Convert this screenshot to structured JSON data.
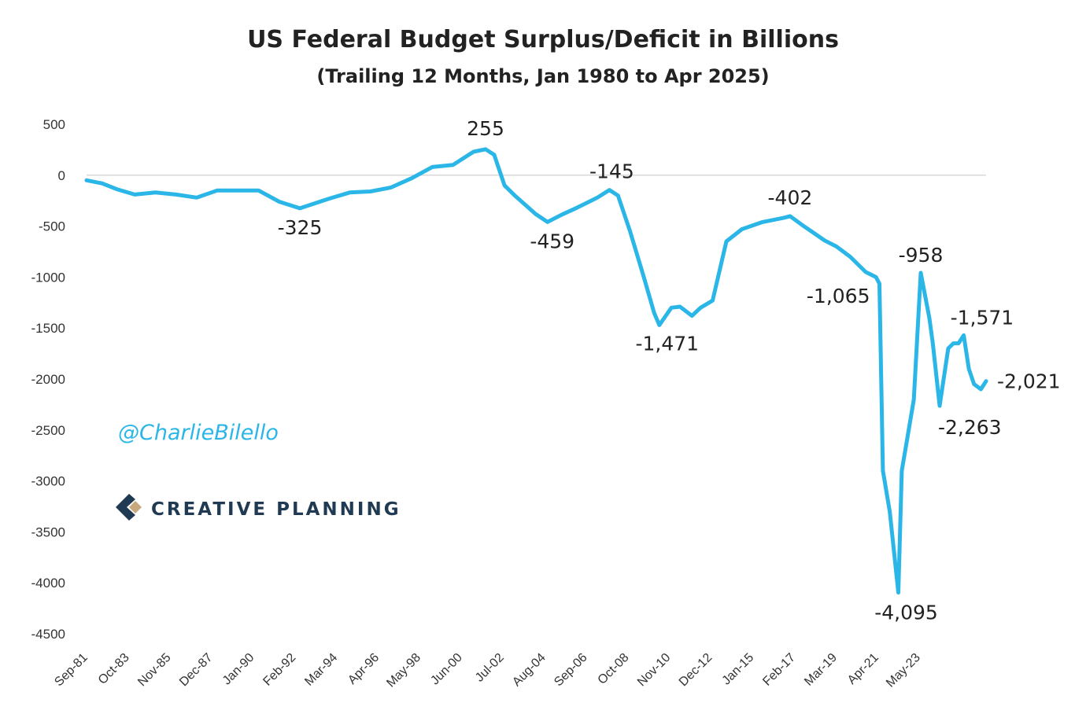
{
  "chart_data": {
    "type": "line",
    "title": "US Federal Budget Surplus/Deficit in Billions",
    "subtitle": "(Trailing 12 Months, Jan 1980 to Apr 2025)",
    "xlabel": "",
    "ylabel": "",
    "ylim": [
      -4500,
      500
    ],
    "yticks": [
      "500",
      "0",
      "-500",
      "-1000",
      "-1500",
      "-2000",
      "-2500",
      "-3000",
      "-3500",
      "-4000",
      "-4500"
    ],
    "xlim": [
      "1981-09",
      "2025-04"
    ],
    "xticks": [
      "Sep-81",
      "Oct-83",
      "Nov-85",
      "Dec-87",
      "Jan-90",
      "Feb-92",
      "Mar-94",
      "Apr-96",
      "May-98",
      "Jun-00",
      "Jul-02",
      "Aug-04",
      "Sep-06",
      "Oct-08",
      "Nov-10",
      "Dec-12",
      "Jan-15",
      "Feb-17",
      "Mar-19",
      "Apr-21",
      "May-23"
    ],
    "grid": false,
    "line_color": "#2bb6e8",
    "series": [
      {
        "x": [
          "1981-09",
          "1982-06",
          "1983-03",
          "1984-01",
          "1985-01",
          "1986-01",
          "1987-01",
          "1988-01",
          "1989-01",
          "1990-01",
          "1991-01",
          "1992-01",
          "1992-09",
          "1993-06",
          "1994-06",
          "1995-06",
          "1996-06",
          "1997-06",
          "1998-06",
          "1999-06",
          "2000-06",
          "2001-01",
          "2001-06",
          "2001-12",
          "2002-06",
          "2003-06",
          "2004-01",
          "2004-09",
          "2005-06",
          "2006-06",
          "2007-01",
          "2007-06",
          "2008-01",
          "2008-09",
          "2009-03",
          "2009-06",
          "2010-01",
          "2010-06",
          "2011-01",
          "2011-06",
          "2012-01",
          "2012-09",
          "2013-06",
          "2014-06",
          "2015-06",
          "2015-10",
          "2016-06",
          "2017-01",
          "2017-06",
          "2018-01",
          "2018-09",
          "2019-06",
          "2019-12",
          "2020-02",
          "2020-04",
          "2020-08",
          "2021-01",
          "2021-03",
          "2021-06",
          "2021-10",
          "2022-02",
          "2022-07",
          "2022-09",
          "2023-01",
          "2023-06",
          "2023-09",
          "2023-12",
          "2024-03",
          "2024-06",
          "2024-09",
          "2025-01",
          "2025-04"
        ],
        "values": [
          -50,
          -80,
          -140,
          -190,
          -170,
          -190,
          -220,
          -150,
          -150,
          -150,
          -260,
          -325,
          -280,
          -230,
          -170,
          -160,
          -120,
          -30,
          80,
          100,
          230,
          255,
          200,
          -100,
          -200,
          -380,
          -459,
          -390,
          -320,
          -220,
          -145,
          -200,
          -550,
          -1000,
          -1350,
          -1471,
          -1300,
          -1290,
          -1380,
          -1300,
          -1230,
          -650,
          -530,
          -460,
          -420,
          -402,
          -500,
          -580,
          -640,
          -700,
          -800,
          -950,
          -1000,
          -1065,
          -2900,
          -3300,
          -4095,
          -2900,
          -2600,
          -2200,
          -958,
          -1400,
          -1650,
          -2263,
          -1700,
          -1650,
          -1650,
          -1571,
          -1900,
          -2050,
          -2100,
          -2021
        ]
      }
    ],
    "annotations": [
      {
        "label": "255",
        "x": "2001-01",
        "value": 255
      },
      {
        "label": "-325",
        "x": "1992-01",
        "value": -325
      },
      {
        "label": "-459",
        "x": "2004-01",
        "value": -459
      },
      {
        "label": "-145",
        "x": "2007-01",
        "value": -145
      },
      {
        "label": "-1,471",
        "x": "2009-06",
        "value": -1471
      },
      {
        "label": "-402",
        "x": "2015-10",
        "value": -402
      },
      {
        "label": "-1,065",
        "x": "2020-02",
        "value": -1065
      },
      {
        "label": "-4,095",
        "x": "2021-01",
        "value": -4095
      },
      {
        "label": "-958",
        "x": "2022-02",
        "value": -958
      },
      {
        "label": "-2,263",
        "x": "2023-01",
        "value": -2263
      },
      {
        "label": "-1,571",
        "x": "2024-03",
        "value": -1571
      },
      {
        "label": "-2,021",
        "x": "2025-04",
        "value": -2021
      }
    ]
  },
  "watermark": {
    "handle": "@CharlieBilello",
    "brand": "CREATIVE PLANNING",
    "brand_color": "#1f3a52",
    "logo_accent_color": "#c8a97e"
  }
}
